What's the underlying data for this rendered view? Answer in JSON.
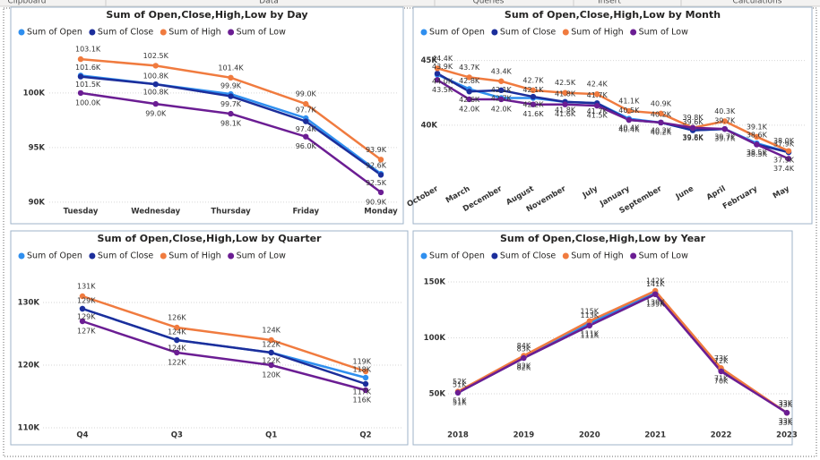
{
  "ribbon": [
    "Clipboard",
    "Data",
    "Queries",
    "Insert",
    "Calculations"
  ],
  "chart_data": [
    {
      "type": "line",
      "title": "Sum of Open,Close,High,Low by Day",
      "categories": [
        "Tuesday",
        "Wednesday",
        "Thursday",
        "Friday",
        "Monday"
      ],
      "ylim": [
        89500,
        104500
      ],
      "yticks": [
        {
          "value": 90000,
          "label": "90K"
        },
        {
          "value": 95000,
          "label": "95K"
        },
        {
          "value": 100000,
          "label": "100K"
        }
      ],
      "grid": true,
      "series": [
        {
          "name": "Sum of Open",
          "color": "#2f8fef",
          "values": [
            101600,
            100800,
            99900,
            97700,
            92600
          ],
          "value_labels": [
            "101.6K",
            "100.8K",
            "99.9K",
            "97.7K",
            "92.6K"
          ]
        },
        {
          "name": "Sum of Close",
          "color": "#1c2e9b",
          "values": [
            101500,
            100800,
            99700,
            97400,
            92500
          ],
          "value_labels": [
            "101.5K",
            "100.8K",
            "99.7K",
            "97.4K",
            "92.5K"
          ]
        },
        {
          "name": "Sum of High",
          "color": "#f07b3f",
          "values": [
            103100,
            102500,
            101400,
            99000,
            93900
          ],
          "value_labels": [
            "103.1K",
            "102.5K",
            "101.4K",
            "99.0K",
            "93.9K"
          ]
        },
        {
          "name": "Sum of Low",
          "color": "#6b1d93",
          "values": [
            100000,
            99000,
            98100,
            96000,
            90900
          ],
          "value_labels": [
            "100.0K",
            "99.0K",
            "98.1K",
            "96.0K",
            "90.9K"
          ]
        }
      ]
    },
    {
      "type": "line",
      "title": "Sum of Open,Close,High,Low by Month",
      "categories": [
        "October",
        "March",
        "December",
        "August",
        "November",
        "July",
        "January",
        "September",
        "June",
        "April",
        "February",
        "May"
      ],
      "ylim": [
        36800,
        45600
      ],
      "yticks": [
        {
          "value": 40000,
          "label": "40K"
        },
        {
          "value": 45000,
          "label": "45K"
        }
      ],
      "grid": true,
      "series": [
        {
          "name": "Sum of Open",
          "color": "#2f8fef",
          "values": [
            43900,
            42800,
            42100,
            42100,
            41800,
            41700,
            40500,
            40200,
            39600,
            39700,
            38600,
            37900
          ],
          "value_labels": [
            "43.9K",
            "42.8K",
            "42.1K",
            "42.1K",
            "41.8K",
            "41.7K",
            "40.5K",
            "40.2K",
            "39.6K",
            "39.7K",
            "38.6K",
            "37.9K"
          ]
        },
        {
          "name": "Sum of Close",
          "color": "#1c2e9b",
          "values": [
            44000,
            42600,
            42700,
            42200,
            41800,
            41700,
            40400,
            40200,
            39600,
            39700,
            38500,
            37900
          ],
          "value_labels": [
            "44.0K",
            "42.6K",
            "42.7K",
            "42.2K",
            "41.8K",
            "41.7K",
            "40.4K",
            "40.2K",
            "39.6K",
            "39.7K",
            "38.5K",
            "37.9K"
          ]
        },
        {
          "name": "Sum of High",
          "color": "#f07b3f",
          "values": [
            44400,
            43700,
            43400,
            42700,
            42500,
            42400,
            41100,
            40900,
            39800,
            40300,
            39100,
            38000
          ],
          "value_labels": [
            "44.4K",
            "43.7K",
            "43.4K",
            "42.7K",
            "42.5K",
            "42.4K",
            "41.1K",
            "40.9K",
            "39.8K",
            "40.3K",
            "39.1K",
            "38.0K"
          ]
        },
        {
          "name": "Sum of Low",
          "color": "#6b1d93",
          "values": [
            43500,
            42000,
            42000,
            41600,
            41600,
            41500,
            40400,
            40200,
            39800,
            39700,
            38500,
            37400
          ],
          "value_labels": [
            "43.5K",
            "42.0K",
            "42.0K",
            "41.6K",
            "41.6K",
            "41.5K",
            "40.4K",
            "40.2K",
            "39.8K",
            "39.7K",
            "38.5K",
            "37.4K"
          ]
        }
      ]
    },
    {
      "type": "line",
      "title": "Sum of Open,Close,High,Low by Quarter",
      "categories": [
        "Q4",
        "Q3",
        "Q1",
        "Q2"
      ],
      "ylim": [
        109000,
        133000
      ],
      "yticks": [
        {
          "value": 110000,
          "label": "110K"
        },
        {
          "value": 120000,
          "label": "120K"
        },
        {
          "value": 130000,
          "label": "130K"
        }
      ],
      "grid": true,
      "series": [
        {
          "name": "Sum of Open",
          "color": "#2f8fef",
          "values": [
            129000,
            124000,
            122000,
            118000
          ],
          "value_labels": [
            "129K",
            "124K",
            "122K",
            "118K"
          ]
        },
        {
          "name": "Sum of Close",
          "color": "#1c2e9b",
          "values": [
            129000,
            124000,
            122000,
            117000
          ],
          "value_labels": [
            "129K",
            "124K",
            "122K",
            "117K"
          ]
        },
        {
          "name": "Sum of High",
          "color": "#f07b3f",
          "values": [
            131000,
            126000,
            124000,
            119000
          ],
          "value_labels": [
            "131K",
            "126K",
            "124K",
            "119K"
          ]
        },
        {
          "name": "Sum of Low",
          "color": "#6b1d93",
          "values": [
            127000,
            122000,
            120000,
            116000
          ],
          "value_labels": [
            "127K",
            "122K",
            "120K",
            "116K"
          ]
        }
      ]
    },
    {
      "type": "line",
      "title": "Sum of Open,Close,High,Low by Year",
      "categories": [
        "2018",
        "2019",
        "2020",
        "2021",
        "2022",
        "2023"
      ],
      "ylim": [
        30000,
        160000
      ],
      "yticks": [
        {
          "value": 50000,
          "label": "50K"
        },
        {
          "value": 100000,
          "label": "100K"
        },
        {
          "value": 150000,
          "label": "150K"
        }
      ],
      "grid": true,
      "series": [
        {
          "name": "Sum of Open",
          "color": "#2f8fef",
          "values": [
            51000,
            83000,
            113000,
            141000,
            72000,
            33000
          ],
          "value_labels": [
            "51K",
            "83K",
            "113K",
            "141K",
            "72K",
            "33K"
          ]
        },
        {
          "name": "Sum of Close",
          "color": "#1c2e9b",
          "values": [
            51000,
            82000,
            111000,
            139000,
            71000,
            33000
          ],
          "value_labels": [
            "51K",
            "82K",
            "111K",
            "139K",
            "71K",
            "33K"
          ]
        },
        {
          "name": "Sum of High",
          "color": "#f07b3f",
          "values": [
            52000,
            84000,
            115000,
            142000,
            73000,
            33000
          ],
          "value_labels": [
            "52K",
            "84K",
            "115K",
            "142K",
            "73K",
            "33K"
          ]
        },
        {
          "name": "Sum of Low",
          "color": "#6b1d93",
          "values": [
            51000,
            82000,
            111000,
            139000,
            70000,
            33000
          ],
          "value_labels": [
            "51K",
            "82K",
            "111K",
            "139K",
            "70K",
            "33K"
          ]
        }
      ]
    }
  ]
}
